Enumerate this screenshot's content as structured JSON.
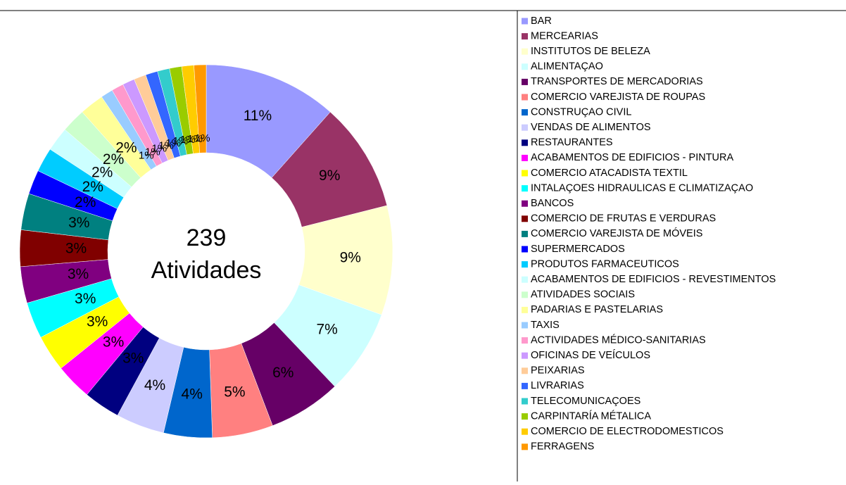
{
  "chart_data": {
    "type": "donut",
    "center_label": [
      "239",
      "Atividades"
    ],
    "categories": [
      "BAR",
      "MERCEARIAS",
      "INSTITUTOS DE BELEZA",
      "ALIMENTAÇAO",
      "TRANSPORTES DE MERCADORIAS",
      "COMERCIO VAREJISTA DE ROUPAS",
      "CONSTRUÇAO CIVIL",
      "VENDAS DE ALIMENTOS",
      "RESTAURANTES",
      "ACABAMENTOS DE EDIFICIOS - PINTURA",
      "COMERCIO ATACADISTA TEXTIL",
      "INTALAÇOES HIDRAULICAS E CLIMATIZAÇAO",
      "BANCOS",
      "COMERCIO DE FRUTAS E VERDURAS",
      "COMERCIO VAREJISTA DE MÓVEIS",
      "SUPERMERCADOS",
      "PRODUTOS FARMACEUTICOS",
      "ACABAMENTOS DE EDIFICIOS - REVESTIMENTOS",
      "ATIVIDADES SOCIAIS",
      "PADARIAS E PASTELARIAS",
      "TAXIS",
      "ACTIVIDADES MÉDICO-SANITARIAS",
      "OFICINAS DE VEÍCULOS",
      "PEIXARIAS",
      "LIVRARIAS",
      "TELECOMUNICAÇOES",
      "CARPINTARÍA MÉTALICA",
      "COMERCIO DE ELECTRODOMESTICOS",
      "FERRAGENS"
    ],
    "values": [
      11,
      9,
      9,
      7,
      6,
      5,
      4,
      4,
      3,
      3,
      3,
      3,
      3,
      3,
      3,
      2,
      2,
      2,
      2,
      2,
      1,
      1,
      1,
      1,
      1,
      1,
      1,
      1,
      1
    ],
    "value_labels": [
      "11%",
      "9%",
      "9%",
      "7%",
      "6%",
      "5%",
      "4%",
      "4%",
      "3%",
      "3%",
      "3%",
      "3%",
      "3%",
      "3%",
      "3%",
      "2%",
      "2%",
      "2%",
      "2%",
      "2%",
      "1%",
      "1%",
      "1%",
      "1%",
      "1%",
      "1%",
      "1%",
      "1%",
      "1%"
    ],
    "colors": [
      "#9999ff",
      "#993366",
      "#ffffcc",
      "#ccffff",
      "#660066",
      "#ff8080",
      "#0066cc",
      "#ccccff",
      "#000080",
      "#ff00ff",
      "#ffff00",
      "#00ffff",
      "#800080",
      "#800000",
      "#008080",
      "#0000ff",
      "#00ccff",
      "#ccffff",
      "#ccffcc",
      "#ffff99",
      "#99ccff",
      "#ff99cc",
      "#cc99ff",
      "#ffcc99",
      "#3366ff",
      "#33cccc",
      "#99cc00",
      "#ffcc00",
      "#ff9900"
    ],
    "legend": "right"
  }
}
